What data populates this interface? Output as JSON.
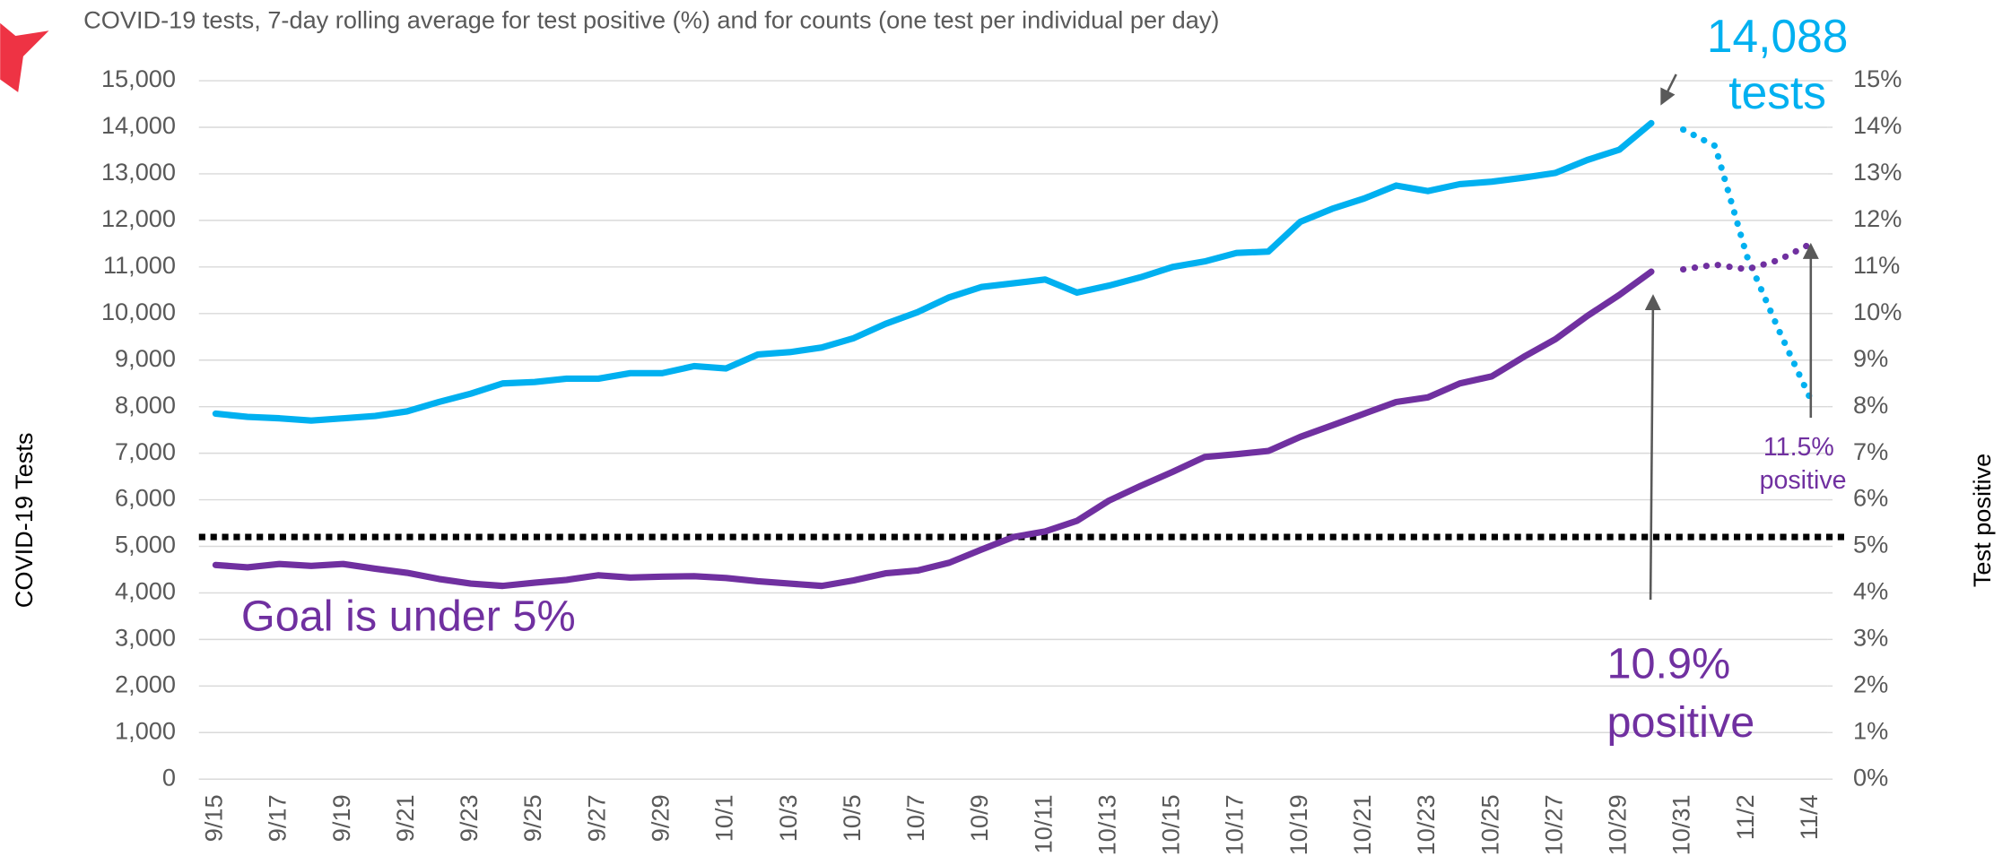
{
  "chart_data": {
    "type": "line",
    "title": "COVID-19 tests, 7-day rolling average for test positive (%) and for counts (one test per individual per day)",
    "ylabel": "COVID-19 Tests",
    "y2label": "Test positive",
    "categories": [
      "9/15",
      null,
      "9/17",
      null,
      "9/19",
      null,
      "9/21",
      null,
      "9/23",
      null,
      "9/25",
      null,
      "9/27",
      null,
      "9/29",
      null,
      "10/1",
      null,
      "10/3",
      null,
      "10/5",
      null,
      "10/7",
      null,
      "10/9",
      null,
      "10/11",
      null,
      "10/13",
      null,
      "10/15",
      null,
      "10/17",
      null,
      "10/19",
      null,
      "10/21",
      null,
      "10/23",
      null,
      "10/25",
      null,
      "10/27",
      null,
      "10/29",
      null,
      "10/31",
      null,
      "11/2",
      null,
      "11/4"
    ],
    "ylim": [
      0,
      15000
    ],
    "yticks": [
      0,
      {
        "value": 1000,
        "label": "1,000"
      },
      {
        "value": 2000,
        "label": "2,000"
      },
      {
        "value": 3000,
        "label": "3,000"
      },
      {
        "value": 4000,
        "label": "4,000"
      },
      {
        "value": 5000,
        "label": "5,000"
      },
      {
        "value": 6000,
        "label": "6,000"
      },
      {
        "value": 7000,
        "label": "7,000"
      },
      {
        "value": 8000,
        "label": "8,000"
      },
      {
        "value": 9000,
        "label": "9,000"
      },
      {
        "value": 10000,
        "label": "10,000"
      },
      {
        "value": 11000,
        "label": "11,000"
      },
      {
        "value": 12000,
        "label": "12,000"
      },
      {
        "value": 13000,
        "label": "13,000"
      },
      {
        "value": 14000,
        "label": "14,000"
      },
      {
        "value": 15000,
        "label": "15,000"
      }
    ],
    "y2lim": [
      0,
      15
    ],
    "y2ticks": [
      {
        "value": 0,
        "label": "0%"
      },
      {
        "value": 1,
        "label": "1%"
      },
      {
        "value": 2,
        "label": "2%"
      },
      {
        "value": 3,
        "label": "3%"
      },
      {
        "value": 4,
        "label": "4%"
      },
      {
        "value": 5,
        "label": "5%"
      },
      {
        "value": 6,
        "label": "6%"
      },
      {
        "value": 7,
        "label": "7%"
      },
      {
        "value": 8,
        "label": "8%"
      },
      {
        "value": 9,
        "label": "9%"
      },
      {
        "value": 10,
        "label": "10%"
      },
      {
        "value": 11,
        "label": "11%"
      },
      {
        "value": 12,
        "label": "12%"
      },
      {
        "value": 13,
        "label": "13%"
      },
      {
        "value": 14,
        "label": "14%"
      },
      {
        "value": 15,
        "label": "15%"
      }
    ],
    "grid": true,
    "series": [
      {
        "color": "#00b0f0",
        "style": "solid",
        "values": [
          7850,
          7780,
          7750,
          7700,
          7750,
          7800,
          7900,
          8100,
          8280,
          8500,
          8530,
          8600,
          8600,
          8720,
          8720,
          8870,
          8820,
          9120,
          9170,
          9270,
          9470,
          9780,
          10030,
          10350,
          10570,
          10650,
          10730,
          10450,
          10600,
          10780,
          11000,
          11120,
          11300,
          11330,
          11970,
          12250,
          12470,
          12750,
          12630,
          12780,
          12830,
          12920,
          13020,
          13300,
          13520,
          14088,
          null,
          null,
          null,
          null,
          null
        ]
      },
      {
        "color": "#00b0f0",
        "style": "dotted",
        "values": [
          null,
          null,
          null,
          null,
          null,
          null,
          null,
          null,
          null,
          null,
          null,
          null,
          null,
          null,
          null,
          null,
          null,
          null,
          null,
          null,
          null,
          null,
          null,
          null,
          null,
          null,
          null,
          null,
          null,
          null,
          null,
          null,
          null,
          null,
          null,
          null,
          null,
          null,
          null,
          null,
          null,
          null,
          null,
          null,
          null,
          null,
          13950,
          13600,
          11230,
          9640,
          8150
        ]
      },
      {
        "color": "#7030a0",
        "style": "solid",
        "axis": "y2",
        "values": [
          4.6,
          4.55,
          4.62,
          4.58,
          4.62,
          4.52,
          4.43,
          4.3,
          4.2,
          4.15,
          4.22,
          4.28,
          4.38,
          4.33,
          4.35,
          4.36,
          4.32,
          4.25,
          4.2,
          4.15,
          4.27,
          4.42,
          4.48,
          4.65,
          4.93,
          5.2,
          5.32,
          5.55,
          5.98,
          6.3,
          6.6,
          6.92,
          6.98,
          7.05,
          7.35,
          7.6,
          7.85,
          8.1,
          8.2,
          8.5,
          8.65,
          9.07,
          9.45,
          9.95,
          10.4,
          10.9,
          null,
          null,
          null,
          null,
          null
        ]
      },
      {
        "color": "#7030a0",
        "style": "dotted",
        "axis": "y2",
        "values": [
          null,
          null,
          null,
          null,
          null,
          null,
          null,
          null,
          null,
          null,
          null,
          null,
          null,
          null,
          null,
          null,
          null,
          null,
          null,
          null,
          null,
          null,
          null,
          null,
          null,
          null,
          null,
          null,
          null,
          null,
          null,
          null,
          null,
          null,
          null,
          null,
          null,
          null,
          null,
          null,
          null,
          null,
          null,
          null,
          null,
          null,
          10.95,
          11.05,
          10.95,
          11.15,
          11.5
        ]
      }
    ],
    "reference_line": {
      "value": 5.2,
      "axis": "y2",
      "color": "#000000"
    },
    "annotations": [
      {
        "lines": [
          "14,088",
          "tests"
        ],
        "color": "#00b0f0"
      },
      {
        "lines": [
          "Goal is under 5%"
        ],
        "color": "#7030a0"
      },
      {
        "lines": [
          "10.9%",
          "positive"
        ],
        "color": "#7030a0"
      },
      {
        "lines": [
          "11.5%",
          "positive"
        ],
        "color": "#7030a0"
      }
    ]
  }
}
